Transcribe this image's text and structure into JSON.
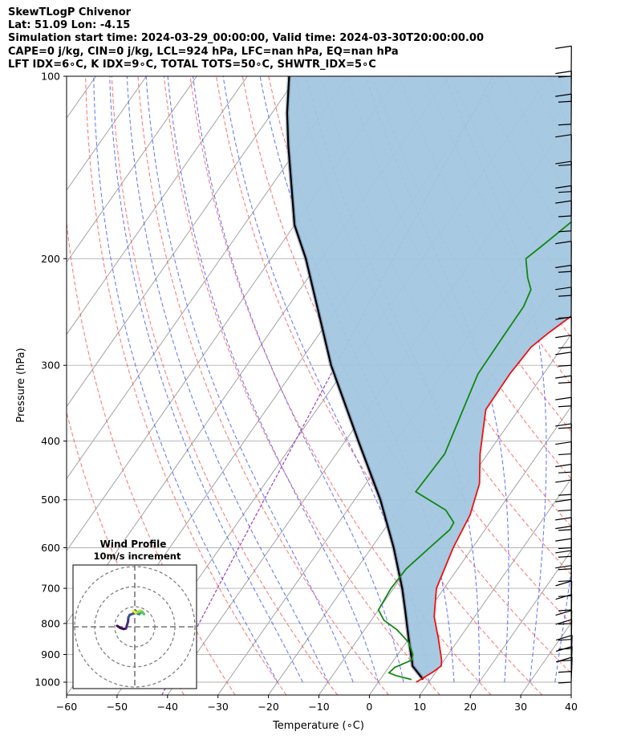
{
  "header": {
    "line1": "SkewTLogP Chivenor",
    "line2": "Lat: 51.09   Lon: -4.15",
    "line3": "Simulation start time: 2024-03-29_00:00:00, Valid time: 2024-03-30T20:00:00.00",
    "line4": "CAPE=0 j/kg, CIN=0 j/kg, LCL=924 hPa, LFC=nan hPa, EQ=nan hPa",
    "line5": "LFT IDX=6∘C, K IDX=9∘C, TOTAL TOTS=50∘C, SHWTR_IDX=5∘C"
  },
  "chart_data": {
    "type": "line",
    "subtype": "skewt-logp",
    "xlabel": "Temperature (∘C)",
    "ylabel": "Pressure (hPa)",
    "xlim": [
      -60,
      40
    ],
    "ylim": [
      1050,
      100
    ],
    "y_scale": "log",
    "x_ticks": [
      -60,
      -50,
      -40,
      -30,
      -20,
      -10,
      0,
      10,
      20,
      30,
      40
    ],
    "y_ticks": [
      1000,
      900,
      800,
      700,
      600,
      500,
      400,
      300,
      200,
      100
    ],
    "grid": true,
    "colors": {
      "temperature": "#ee1111",
      "dewpoint": "#118811",
      "parcel": "#000000",
      "cape_fill": "#a3c6e0",
      "dry_adiabat": "#ff5a5a",
      "moist_adiabat": "#3a50ff",
      "mixing_ratio": "#a040c0",
      "isotherm": "#9a9a9a"
    },
    "series": [
      {
        "role": "temperature",
        "points": [
          [
            7.5,
            1000
          ],
          [
            9.5,
            960
          ],
          [
            10.2,
            940
          ],
          [
            9.5,
            920
          ],
          [
            6,
            850
          ],
          [
            2,
            780
          ],
          [
            -1.5,
            700
          ],
          [
            -3.8,
            600
          ],
          [
            -5,
            530
          ],
          [
            -7.5,
            470
          ],
          [
            -11.5,
            420
          ],
          [
            -16.5,
            355
          ],
          [
            -16.7,
            310
          ],
          [
            -16.2,
            280
          ],
          [
            -14.7,
            265
          ],
          [
            -12,
            245
          ],
          [
            -8,
            225
          ],
          [
            -3.5,
            207
          ],
          [
            -0.5,
            192
          ],
          [
            3.5,
            178
          ],
          [
            8.5,
            164
          ],
          [
            10.5,
            155
          ],
          [
            14.5,
            135
          ],
          [
            18,
            117
          ],
          [
            21.2,
            100
          ]
        ]
      },
      {
        "role": "dewpoint",
        "points": [
          [
            6.2,
            990
          ],
          [
            2.5,
            975
          ],
          [
            0.8,
            965
          ],
          [
            1.2,
            945
          ],
          [
            3.5,
            920
          ],
          [
            3,
            900
          ],
          [
            0.5,
            860
          ],
          [
            -3.5,
            820
          ],
          [
            -7.5,
            790
          ],
          [
            -10,
            760
          ],
          [
            -10.5,
            700
          ],
          [
            -10.2,
            650
          ],
          [
            -8.5,
            600
          ],
          [
            -7,
            560
          ],
          [
            -7.2,
            545
          ],
          [
            -10.5,
            520
          ],
          [
            -19,
            485
          ],
          [
            -18.5,
            420
          ],
          [
            -21,
            355
          ],
          [
            -23,
            310
          ],
          [
            -23.2,
            270
          ],
          [
            -23.3,
            240
          ],
          [
            -24.2,
            225
          ],
          [
            -26.5,
            215
          ],
          [
            -29.5,
            200
          ],
          [
            -28,
            190
          ],
          [
            -26.5,
            180
          ],
          [
            -25,
            170
          ],
          [
            -22.5,
            155
          ],
          [
            -19.5,
            140
          ],
          [
            -15,
            125
          ],
          [
            -13.5,
            115
          ],
          [
            -9.5,
            100
          ]
        ]
      },
      {
        "role": "parcel",
        "points": [
          [
            8.5,
            990
          ],
          [
            4.5,
            940
          ],
          [
            3.8,
            924
          ],
          [
            0.1,
            850
          ],
          [
            -4.6,
            762
          ],
          [
            -8.3,
            700
          ],
          [
            -15.6,
            600
          ],
          [
            -24.9,
            500
          ],
          [
            -37.4,
            400
          ],
          [
            -53.3,
            300
          ],
          [
            -73.1,
            200
          ],
          [
            -80,
            176
          ],
          [
            -86.5,
            150
          ],
          [
            -92.3,
            130
          ],
          [
            -97,
            115
          ],
          [
            -101.7,
            100
          ]
        ]
      },
      {
        "role": "wind_barbs",
        "levels": [
          1000,
          960,
          920,
          880,
          850,
          800,
          760,
          720,
          680,
          650,
          620,
          600,
          560,
          520,
          490,
          450,
          420,
          380,
          350,
          320,
          300,
          280,
          250,
          230,
          210,
          180,
          170,
          155,
          140,
          120,
          110,
          100
        ]
      }
    ],
    "background_lines": {
      "isotherms_C": [
        -180,
        -170,
        -160,
        -150,
        -140,
        -130,
        -120,
        -110,
        -100,
        -90,
        -80,
        -70,
        -60,
        -50,
        -40,
        -30,
        -20,
        -10,
        0,
        10,
        20,
        30,
        40
      ],
      "dry_adiabats_C": [
        -40,
        -30,
        -20,
        -10,
        0,
        10,
        20,
        30,
        40,
        50,
        60,
        70,
        80,
        90,
        100,
        110,
        120,
        130,
        140,
        150,
        160,
        170,
        180
      ],
      "moist_adiabats_C": [
        -20,
        -15,
        -10,
        -5,
        0,
        5,
        10,
        15,
        20,
        25,
        30,
        35
      ],
      "mixing_ratio_lines": [
        0.1
      ]
    },
    "inset": {
      "title": "Wind Profile",
      "subtitle": "10m/s increment",
      "type": "hodograph",
      "ring_radii_ms": [
        10,
        20,
        30
      ],
      "points_uv": [
        [
          -3,
          -1
        ],
        [
          -4,
          1
        ],
        [
          -4.5,
          3
        ],
        [
          -4.3,
          4.5
        ],
        [
          -3,
          5
        ],
        [
          -1,
          5.8
        ],
        [
          1,
          6
        ],
        [
          2.2,
          6.8
        ],
        [
          2.8,
          8.8
        ],
        [
          3.6,
          9.7
        ],
        [
          4.3,
          10.4
        ],
        [
          3.6,
          11
        ],
        [
          2.8,
          11.8
        ],
        [
          2.6,
          12.7
        ],
        [
          3.1,
          13.4
        ],
        [
          3.6,
          14.2
        ],
        [
          3.2,
          15
        ],
        [
          2.6,
          15.8
        ],
        [
          3.2,
          15.2
        ],
        [
          3.8,
          14.5
        ],
        [
          4.2,
          13.5
        ],
        [
          3.9,
          12.5
        ],
        [
          3.5,
          11.5
        ],
        [
          3.3,
          10.5
        ],
        [
          3.8,
          9.8
        ],
        [
          4,
          9
        ]
      ]
    }
  }
}
